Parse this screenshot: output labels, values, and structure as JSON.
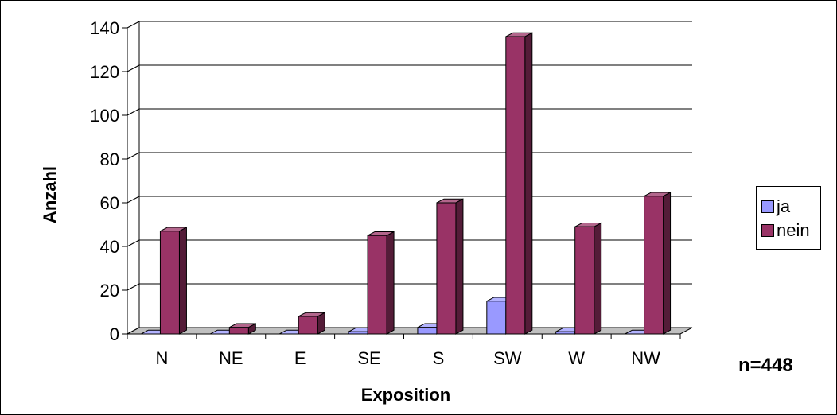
{
  "chart_data": {
    "type": "bar",
    "categories": [
      "N",
      "NE",
      "E",
      "SE",
      "S",
      "SW",
      "W",
      "NW"
    ],
    "series": [
      {
        "name": "ja",
        "color": "#9999FF",
        "values": [
          0,
          0,
          0,
          1,
          3,
          15,
          1,
          0
        ]
      },
      {
        "name": "nein",
        "color": "#993366",
        "values": [
          47,
          3,
          8,
          45,
          60,
          136,
          49,
          63
        ]
      }
    ],
    "xlabel": "Exposition",
    "ylabel": "Anzahl",
    "ylim": [
      0,
      140
    ],
    "yticks": [
      0,
      20,
      40,
      60,
      80,
      100,
      120,
      140
    ],
    "grid": true,
    "legend_position": "right",
    "annotation": "n=448"
  }
}
